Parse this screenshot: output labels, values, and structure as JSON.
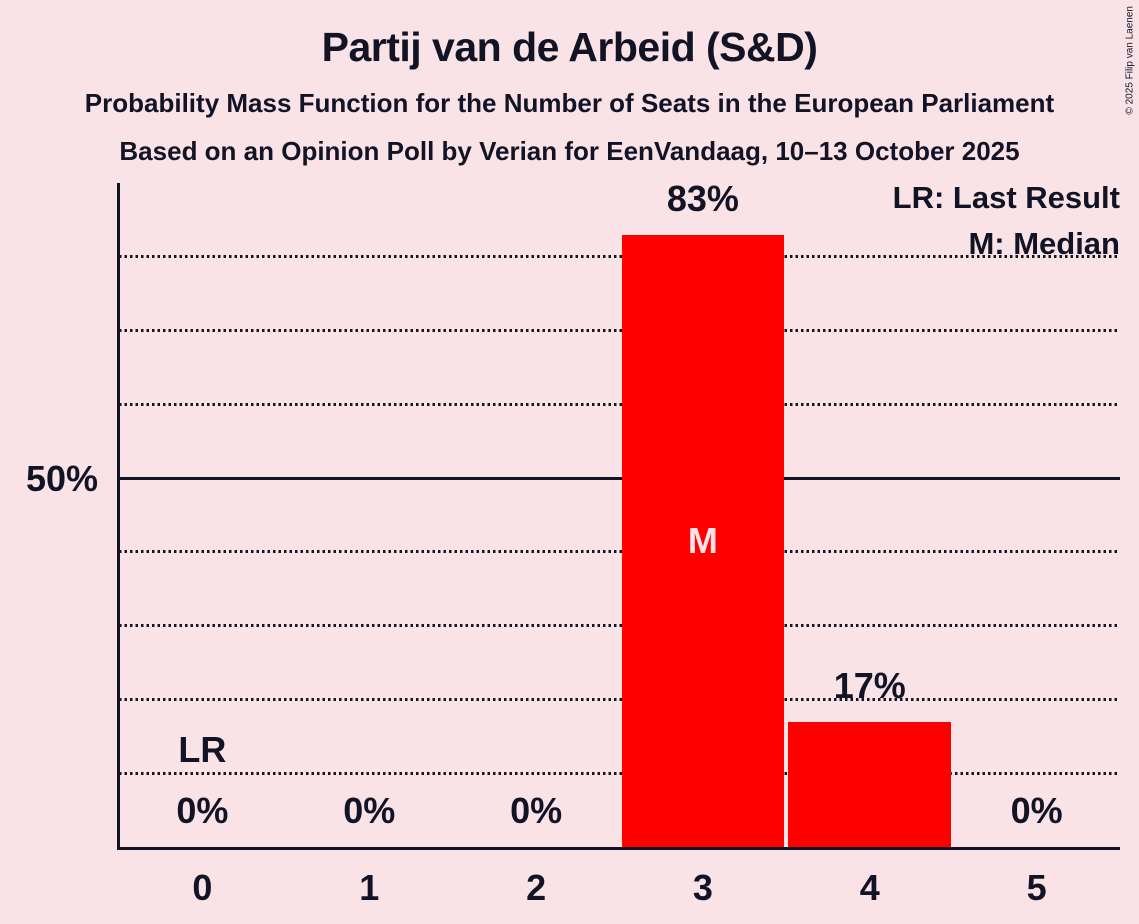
{
  "header": {
    "title": "Partij van de Arbeid (S&D)",
    "subtitle_line1": "Probability Mass Function for the Number of Seats in the European Parliament",
    "subtitle_line2": "Based on an Opinion Poll by Verian for EenVandaag, 10–13 October 2025"
  },
  "copyright": "© 2025 Filip van Laenen",
  "legend": {
    "lr": "LR: Last Result",
    "m": "M: Median"
  },
  "y_axis": {
    "tick_label": "50%"
  },
  "chart_data": {
    "type": "bar",
    "title": "Partij van de Arbeid (S&D)",
    "subtitle": "Probability Mass Function for the Number of Seats in the European Parliament",
    "poll_source": "Based on an Opinion Poll by Verian for EenVandaag, 10–13 October 2025",
    "categories": [
      "0",
      "1",
      "2",
      "3",
      "4",
      "5"
    ],
    "values": [
      0,
      0,
      0,
      83,
      17,
      0
    ],
    "value_labels": [
      "0%",
      "0%",
      "0%",
      "83%",
      "17%",
      "0%"
    ],
    "ylim": [
      0,
      90
    ],
    "y_tick": {
      "value": 50,
      "label": "50%"
    },
    "solid_gridline": 50,
    "dotted_gridlines": [
      10,
      20,
      30,
      40,
      60,
      70,
      80
    ],
    "median_category": "3",
    "median_marker": "M",
    "last_result_category": "0",
    "last_result_marker": "LR",
    "legend_entries": [
      "LR: Last Result",
      "M: Median"
    ],
    "legend_position": "top-right",
    "grid": "horizontal dotted",
    "colors": {
      "bar": "#FF0000",
      "background": "#FAE3E7",
      "ink": "#121426",
      "median_label": "#FAE3E7"
    }
  }
}
